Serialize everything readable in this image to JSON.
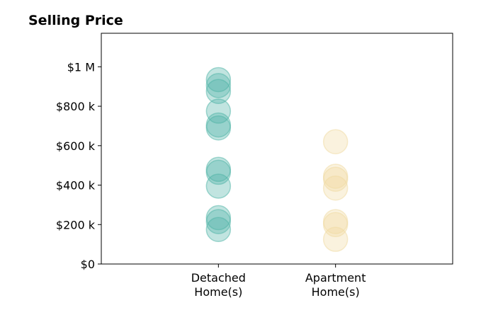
{
  "chart_data": {
    "type": "scatter",
    "title": "Selling Price",
    "xlabel": "",
    "ylabel": "",
    "categories": [
      "Detached Home(s)",
      "Apartment Home(s)"
    ],
    "category_tick_lines": [
      [
        "Detached",
        "Home(s)"
      ],
      [
        "Apartment",
        "Home(s)"
      ]
    ],
    "xlim": [
      -1,
      2
    ],
    "ylim": [
      0,
      1170000
    ],
    "y_ticks": [
      {
        "value": 0,
        "label": "$0"
      },
      {
        "value": 200000,
        "label": "$200 k"
      },
      {
        "value": 400000,
        "label": "$400 k"
      },
      {
        "value": 600000,
        "label": "$600 k"
      },
      {
        "value": 800000,
        "label": "$800 k"
      },
      {
        "value": 1000000,
        "label": "$1 M"
      }
    ],
    "grid": false,
    "legend": "none",
    "marker_opacity": 0.35,
    "series": [
      {
        "category": "Detached Home(s)",
        "color": "#4db3a6",
        "values": [
          935000,
          905000,
          875000,
          775000,
          705000,
          690000,
          480000,
          465000,
          395000,
          235000,
          215000,
          175000
        ]
      },
      {
        "category": "Apartment Home(s)",
        "color": "#f0d9a0",
        "values": [
          620000,
          445000,
          430000,
          385000,
          215000,
          200000,
          125000
        ]
      }
    ]
  }
}
